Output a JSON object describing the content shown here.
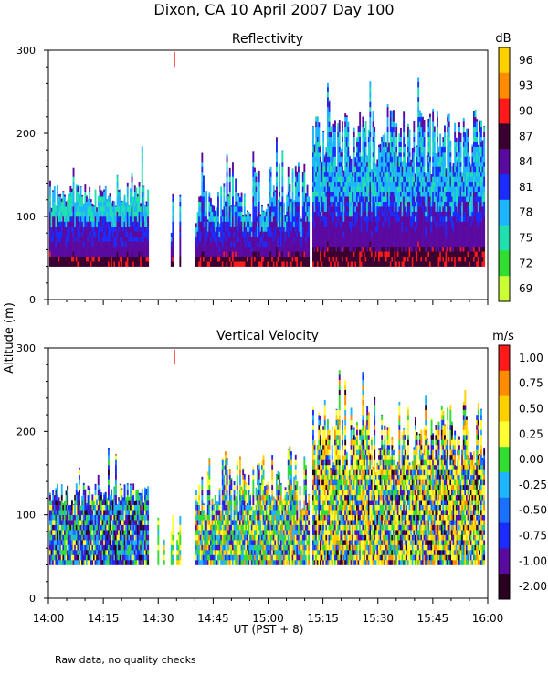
{
  "figure": {
    "title": "Dixon, CA 10 April 2007  Day 100",
    "ylabel": "Altitude (m)",
    "xlabel": "UT  (PST + 8)",
    "footnote": "Raw data, no quality checks"
  },
  "chart_data": [
    {
      "type": "heatmap",
      "title": "Reflectivity",
      "units": "dB",
      "xlim_minutes": [
        0,
        120
      ],
      "ylim": [
        0,
        300
      ],
      "yticks": [
        0,
        100,
        200,
        300
      ],
      "x_tick_labels": [
        "14:00",
        "14:15",
        "14:30",
        "14:45",
        "15:00",
        "15:15",
        "15:30",
        "15:45",
        "16:00"
      ],
      "colorbar": {
        "labels": [
          "96",
          "93",
          "90",
          "87",
          "84",
          "81",
          "78",
          "75",
          "72",
          "69"
        ],
        "colors": [
          "#ffd000",
          "#ff8c00",
          "#ff1a1a",
          "#3a0030",
          "#5a0aa0",
          "#1a2cff",
          "#1eb4ff",
          "#20e0b0",
          "#30dd30",
          "#ccff33"
        ]
      },
      "profiles": [
        {
          "segment": "14:00-14:27",
          "bottom": 40,
          "top_typical": 140,
          "layers": [
            "90",
            "87",
            "84",
            "81",
            "78",
            "75"
          ]
        },
        {
          "segment": "14:29-14:36",
          "bottom": 40,
          "top_typical": 100,
          "layers": [
            "87",
            "84",
            "81"
          ]
        },
        {
          "segment": "14:40-15:11",
          "bottom": 40,
          "top_typical": 160,
          "layers": [
            "87",
            "84",
            "81",
            "78"
          ]
        },
        {
          "segment": "15:12-15:55",
          "bottom": 40,
          "top_typical": 200,
          "layers": [
            "87",
            "84",
            "81",
            "78",
            "75"
          ]
        }
      ]
    },
    {
      "type": "heatmap",
      "title": "Vertical Velocity",
      "units": "m/s",
      "xlim_minutes": [
        0,
        120
      ],
      "ylim": [
        0,
        300
      ],
      "yticks": [
        0,
        100,
        200,
        300
      ],
      "x_tick_labels": [
        "14:00",
        "14:15",
        "14:30",
        "14:45",
        "15:00",
        "15:15",
        "15:30",
        "15:45",
        "16:00"
      ],
      "colorbar": {
        "labels": [
          "1.00",
          "0.75",
          "0.50",
          "0.25",
          "0.00",
          "-0.25",
          "-0.50",
          "-0.75",
          "-1.00",
          "-2.00"
        ],
        "colors": [
          "#ff1a1a",
          "#ff8c00",
          "#ffd000",
          "#ffff33",
          "#30dd30",
          "#1eb4ff",
          "#1a70ff",
          "#1a2cff",
          "#5a0aa0",
          "#2a0020"
        ]
      },
      "profiles": [
        {
          "segment": "14:00-14:27",
          "bottom": 40,
          "top_typical": 140,
          "dominant": [
            "0.00",
            "-0.25",
            "-0.75"
          ]
        },
        {
          "segment": "14:29-14:36",
          "bottom": 40,
          "top_typical": 100,
          "dominant": [
            "0.00",
            "0.25"
          ]
        },
        {
          "segment": "14:40-15:11",
          "bottom": 40,
          "top_typical": 160,
          "dominant": [
            "0.00",
            "0.25",
            "-0.25"
          ]
        },
        {
          "segment": "15:12-15:55",
          "bottom": 40,
          "top_typical": 200,
          "dominant": [
            "0.50",
            "0.25",
            "0.00"
          ]
        }
      ]
    }
  ]
}
